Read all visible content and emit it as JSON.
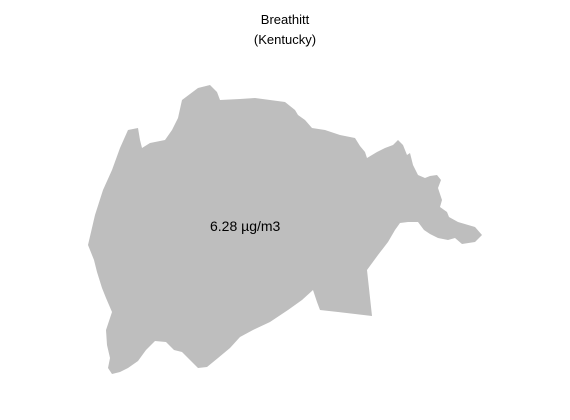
{
  "map": {
    "title": "Breathitt",
    "subtitle": "(Kentucky)",
    "region_value_label": "6.28 µg/m3",
    "region_fill": "#bebebe"
  }
}
